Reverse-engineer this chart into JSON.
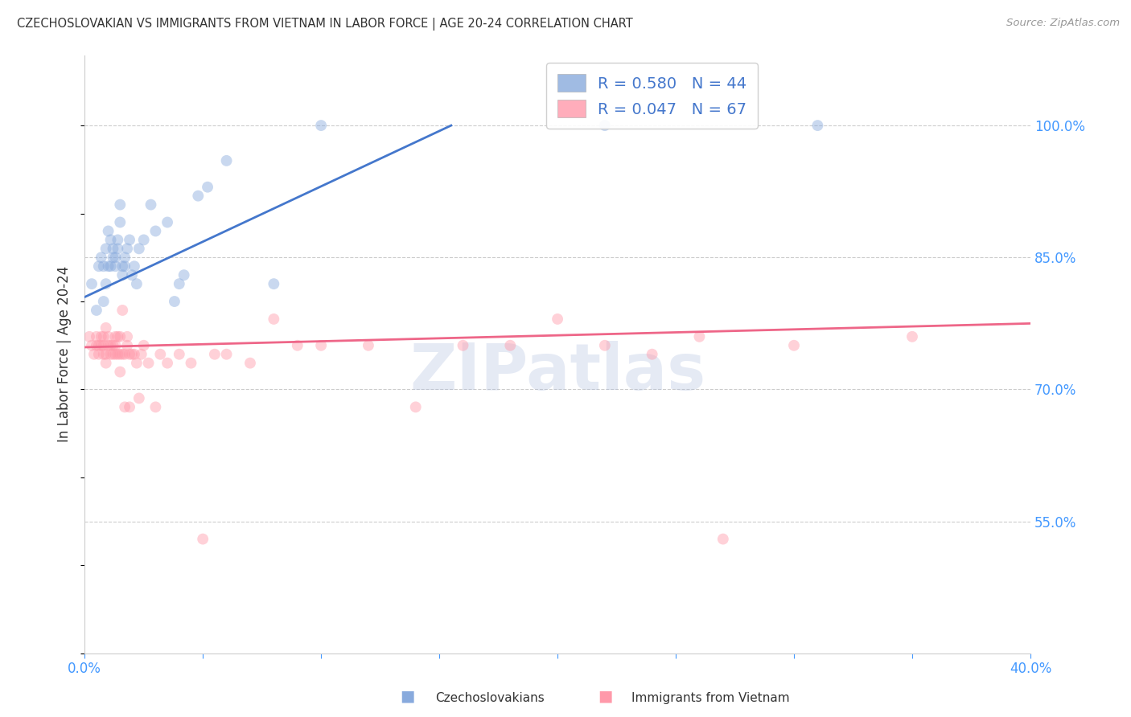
{
  "title": "CZECHOSLOVAKIAN VS IMMIGRANTS FROM VIETNAM IN LABOR FORCE | AGE 20-24 CORRELATION CHART",
  "source": "Source: ZipAtlas.com",
  "ylabel": "In Labor Force | Age 20-24",
  "xlim": [
    0.0,
    0.4
  ],
  "ylim": [
    0.4,
    1.08
  ],
  "xticks": [
    0.0,
    0.05,
    0.1,
    0.15,
    0.2,
    0.25,
    0.3,
    0.35,
    0.4
  ],
  "yticks": [
    0.55,
    0.7,
    0.85,
    1.0
  ],
  "ytick_labels": [
    "55.0%",
    "70.0%",
    "85.0%",
    "100.0%"
  ],
  "blue_color": "#88AADD",
  "pink_color": "#FF99AA",
  "blue_line_color": "#4477CC",
  "pink_line_color": "#EE6688",
  "watermark": "ZIPatlas",
  "watermark_color": "#AABBDD",
  "background_color": "#FFFFFF",
  "grid_color": "#CCCCCC",
  "axis_color": "#4499FF",
  "title_color": "#333333",
  "marker_size": 100,
  "marker_alpha": 0.45,
  "line_width": 2.0,
  "blue_x": [
    0.003,
    0.005,
    0.006,
    0.007,
    0.008,
    0.008,
    0.009,
    0.009,
    0.01,
    0.01,
    0.011,
    0.011,
    0.012,
    0.012,
    0.013,
    0.013,
    0.014,
    0.014,
    0.015,
    0.015,
    0.016,
    0.016,
    0.017,
    0.017,
    0.018,
    0.019,
    0.02,
    0.021,
    0.022,
    0.023,
    0.025,
    0.028,
    0.03,
    0.035,
    0.038,
    0.04,
    0.042,
    0.048,
    0.052,
    0.06,
    0.08,
    0.1,
    0.22,
    0.31
  ],
  "blue_y": [
    0.82,
    0.79,
    0.84,
    0.85,
    0.8,
    0.84,
    0.82,
    0.86,
    0.84,
    0.88,
    0.84,
    0.87,
    0.85,
    0.86,
    0.84,
    0.85,
    0.86,
    0.87,
    0.89,
    0.91,
    0.83,
    0.84,
    0.84,
    0.85,
    0.86,
    0.87,
    0.83,
    0.84,
    0.82,
    0.86,
    0.87,
    0.91,
    0.88,
    0.89,
    0.8,
    0.82,
    0.83,
    0.92,
    0.93,
    0.96,
    0.82,
    1.0,
    1.0,
    1.0
  ],
  "pink_x": [
    0.002,
    0.003,
    0.004,
    0.005,
    0.005,
    0.006,
    0.006,
    0.007,
    0.007,
    0.008,
    0.008,
    0.008,
    0.009,
    0.009,
    0.009,
    0.01,
    0.01,
    0.011,
    0.011,
    0.012,
    0.012,
    0.013,
    0.013,
    0.013,
    0.014,
    0.014,
    0.015,
    0.015,
    0.015,
    0.016,
    0.016,
    0.017,
    0.017,
    0.018,
    0.018,
    0.019,
    0.019,
    0.02,
    0.021,
    0.022,
    0.023,
    0.024,
    0.025,
    0.027,
    0.03,
    0.032,
    0.035,
    0.04,
    0.045,
    0.05,
    0.055,
    0.06,
    0.07,
    0.08,
    0.09,
    0.1,
    0.12,
    0.14,
    0.16,
    0.18,
    0.2,
    0.22,
    0.24,
    0.26,
    0.27,
    0.3,
    0.35
  ],
  "pink_y": [
    0.76,
    0.75,
    0.74,
    0.75,
    0.76,
    0.75,
    0.74,
    0.75,
    0.76,
    0.74,
    0.75,
    0.76,
    0.73,
    0.74,
    0.77,
    0.75,
    0.76,
    0.74,
    0.75,
    0.74,
    0.75,
    0.74,
    0.75,
    0.76,
    0.74,
    0.76,
    0.72,
    0.74,
    0.76,
    0.74,
    0.79,
    0.68,
    0.74,
    0.75,
    0.76,
    0.68,
    0.74,
    0.74,
    0.74,
    0.73,
    0.69,
    0.74,
    0.75,
    0.73,
    0.68,
    0.74,
    0.73,
    0.74,
    0.73,
    0.53,
    0.74,
    0.74,
    0.73,
    0.78,
    0.75,
    0.75,
    0.75,
    0.68,
    0.75,
    0.75,
    0.78,
    0.75,
    0.74,
    0.76,
    0.53,
    0.75,
    0.76
  ],
  "blue_line_x0": 0.0,
  "blue_line_y0": 0.805,
  "blue_line_x1": 0.155,
  "blue_line_y1": 1.0,
  "pink_line_x0": 0.0,
  "pink_line_y0": 0.748,
  "pink_line_x1": 0.4,
  "pink_line_y1": 0.775
}
